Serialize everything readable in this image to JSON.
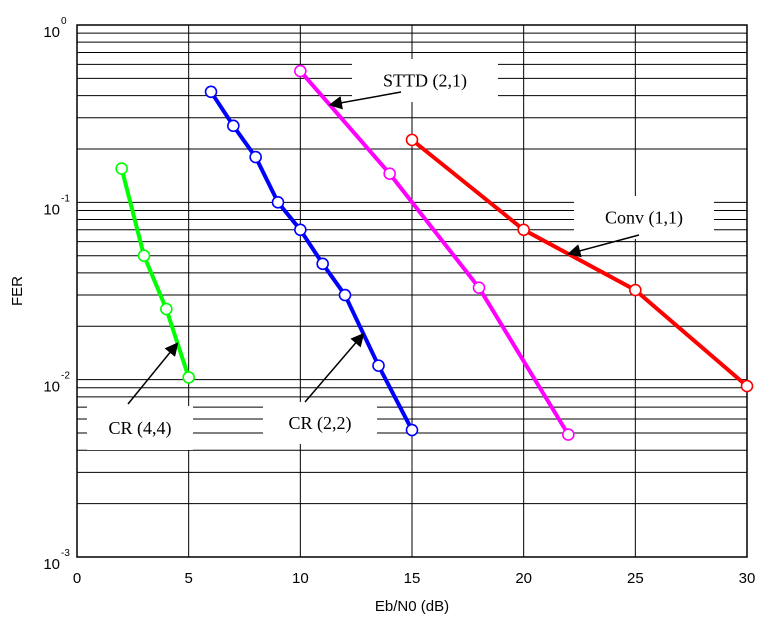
{
  "chart_data": {
    "type": "line",
    "title": "",
    "xlabel": "Eb/N0 (dB)",
    "ylabel": "FER",
    "xlim": [
      0,
      30
    ],
    "ylim": [
      0.001,
      1
    ],
    "yscale": "log",
    "grid": true,
    "x_ticks": [
      "0",
      "5",
      "10",
      "15",
      "20",
      "25",
      "30"
    ],
    "x_tick_values": [
      0,
      5,
      10,
      15,
      20,
      25,
      30
    ],
    "y_ticks": [
      {
        "value": 1,
        "base": "10",
        "exp": "0"
      },
      {
        "value": 0.1,
        "base": "10",
        "exp": "-1"
      },
      {
        "value": 0.01,
        "base": "10",
        "exp": "-2"
      },
      {
        "value": 0.001,
        "base": "10",
        "exp": "-3"
      }
    ],
    "series": [
      {
        "name": "CR (4,4)",
        "color": "#00ff00",
        "marker": "circle",
        "x": [
          2,
          3,
          4,
          5
        ],
        "y": [
          0.155,
          0.05,
          0.025,
          0.0103
        ]
      },
      {
        "name": "CR (2,2)",
        "color": "#0000ff",
        "marker": "circle",
        "x": [
          6,
          7,
          8,
          9,
          10,
          11,
          12,
          13.5,
          15
        ],
        "y": [
          0.42,
          0.27,
          0.18,
          0.1,
          0.07,
          0.045,
          0.03,
          0.012,
          0.0052
        ]
      },
      {
        "name": "STTD (2,1)",
        "color": "#ff00ff",
        "marker": "circle",
        "x": [
          10,
          14,
          18,
          22
        ],
        "y": [
          0.55,
          0.145,
          0.033,
          0.0049
        ]
      },
      {
        "name": "Conv (1,1)",
        "color": "#ff0000",
        "marker": "circle",
        "x": [
          15,
          20,
          25,
          30
        ],
        "y": [
          0.225,
          0.07,
          0.032,
          0.0092
        ]
      }
    ],
    "annotations": [
      {
        "label": "CR (4,4)",
        "series": "CR (4,4)"
      },
      {
        "label": "CR (2,2)",
        "series": "CR (2,2)"
      },
      {
        "label": "STTD (2,1)",
        "series": "STTD (2,1)"
      },
      {
        "label": "Conv (1,1)",
        "series": "Conv (1,1)"
      }
    ]
  }
}
